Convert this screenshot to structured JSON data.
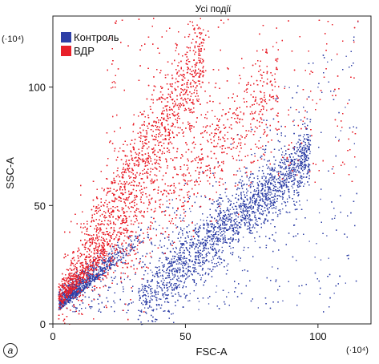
{
  "chart_data": {
    "type": "scatter",
    "title": "Усі події",
    "xlabel": "FSC-A",
    "ylabel": "SSC-A",
    "x_scale_note": "(·10⁴)",
    "y_scale_note": "(·10⁴)",
    "xlim": [
      0,
      120
    ],
    "ylim": [
      0,
      130
    ],
    "x_ticks": [
      0,
      50,
      100
    ],
    "y_ticks": [
      0,
      50,
      100
    ],
    "grid": false,
    "legend_position": "top-left",
    "panel_label": "a",
    "series": [
      {
        "name": "Контроль",
        "color": "#2e3fa6"
      },
      {
        "name": "ВДР",
        "color": "#e8202a"
      }
    ]
  }
}
